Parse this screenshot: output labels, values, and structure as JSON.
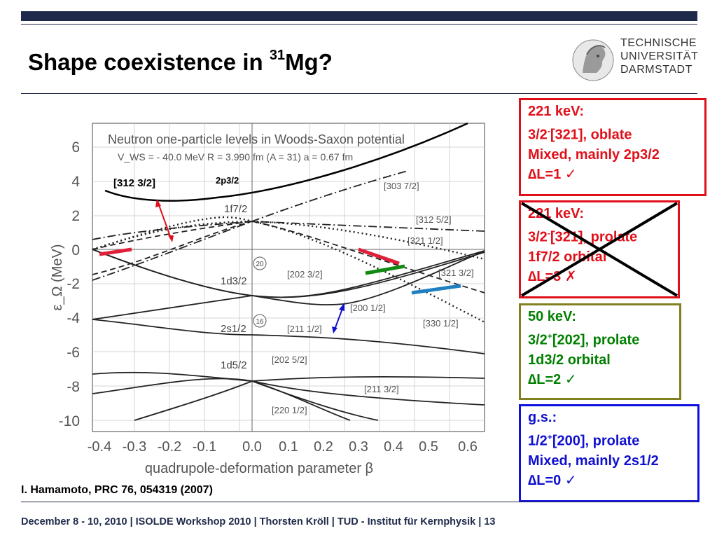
{
  "title": "Shape coexistence in",
  "title_mass": "31",
  "title_element": "Mg?",
  "logo_text": "TECHNISCHE\nUNIVERSITÄT\nDARMSTADT",
  "chart_data": {
    "type": "line",
    "title": "Neutron one-particle levels in Woods-Saxon potential",
    "subtitle": "V_WS =   - 40.0 MeV      R = 3.990 fm (A = 31)      a = 0.67 fm",
    "xlabel": "quadrupole-deformation parameter β",
    "ylabel": "ε_Ω (MeV)",
    "xlim": [
      -0.4,
      0.6
    ],
    "ylim": [
      -10,
      7
    ],
    "x_ticks": [
      "-0.4",
      "-0.3",
      "-0.2",
      "-0.1",
      "0.0",
      "0.1",
      "0.2",
      "0.3",
      "0.4",
      "0.5",
      "0.6"
    ],
    "y_ticks": [
      "6",
      "4",
      "2",
      "0",
      "-2",
      "-4",
      "-6",
      "-8",
      "-10"
    ],
    "grid": true,
    "spherical_labels": [
      "1f7/2",
      "1d3/2",
      "2s1/2",
      "1d5/2"
    ],
    "magic_numbers": [
      "20",
      "16"
    ],
    "orbital_labels": [
      "[303 7/2]",
      "[312 5/2]",
      "[321 1/2]",
      "[202 3/2]",
      "[321 3/2]",
      "[200 1/2]",
      "[330 1/2]",
      "[211 1/2]",
      "[202 5/2]",
      "[211 3/2]",
      "[220 1/2]"
    ],
    "annotations": [
      "[312 3/2]",
      "2p3/2"
    ]
  },
  "boxes": {
    "b1": {
      "l1": "221 keV:",
      "l2a": "3/2",
      "l2sup": "-",
      "l2b": "[321], oblate",
      "l3": "Mixed, mainly 2p3/2",
      "l4": "∆L=1 ✓"
    },
    "b2": {
      "l1": "221 keV:",
      "l2a": "3/2",
      "l2sup": "-",
      "l2b": "[321], prolate",
      "l3": "1f7/2 orbital",
      "l4": "∆L=3 ✗"
    },
    "b3": {
      "l1": "50 keV:",
      "l2a": "3/2",
      "l2sup": "+",
      "l2b": "[202], prolate",
      "l3": "1d3/2 orbital",
      "l4": "∆L=2 ✓"
    },
    "b4": {
      "l1": "g.s.:",
      "l2a": "1/2",
      "l2sup": "+",
      "l2b": "[200], prolate",
      "l3": "Mixed, mainly 2s1/2",
      "l4": "∆L=0 ✓"
    }
  },
  "citation": "I. Hamamoto, PRC 76, 054319 (2007)",
  "footer": "December 8 - 10, 2010  |  ISOLDE Workshop 2010  | Thorsten Kröll | TUD - Institut für Kernphysik  |  13",
  "colors": {
    "header": "#1f2a4a",
    "red": "#e0101a",
    "green": "#008000",
    "olive": "#808020",
    "blue": "#1010e0"
  }
}
